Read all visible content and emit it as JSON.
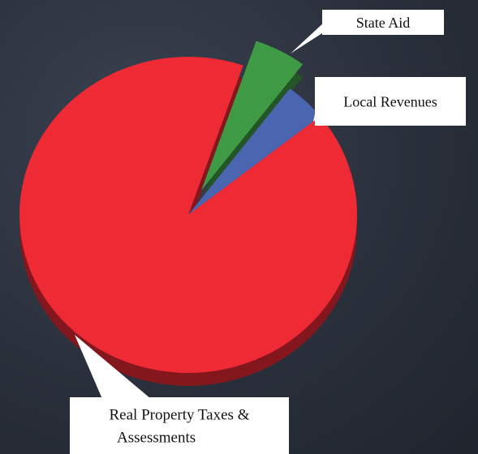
{
  "chart_data": {
    "type": "pie",
    "title": "",
    "slices": [
      {
        "label_lines": [
          "State Aid"
        ],
        "value": 5,
        "color": "#3f9a45",
        "exploded": true
      },
      {
        "label_lines": [
          "Local Revenues"
        ],
        "value": 4,
        "color": "#4a66b0",
        "exploded": false
      },
      {
        "label_lines": [
          "Real Property Taxes &",
          "Assessments"
        ],
        "value": 91,
        "color": "#ee2a35",
        "exploded": false
      }
    ],
    "three_d": true,
    "legend": "none"
  }
}
